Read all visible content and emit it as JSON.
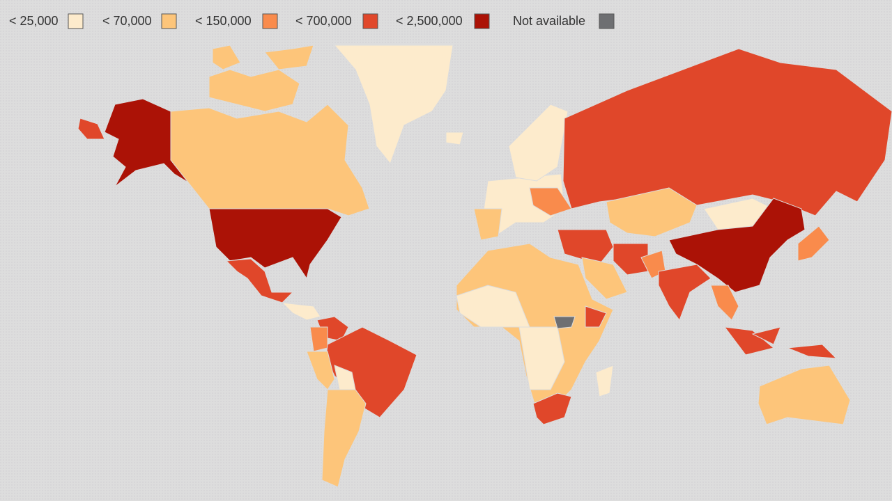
{
  "legend": {
    "items": [
      {
        "label": "< 25,000",
        "color": "#fdebcc"
      },
      {
        "label": "< 70,000",
        "color": "#fdc57a"
      },
      {
        "label": "< 150,000",
        "color": "#f98b4c"
      },
      {
        "label": "< 700,000",
        "color": "#e0472a"
      },
      {
        "label": "< 2,500,000",
        "color": "#ab1206"
      },
      {
        "label": "Not available",
        "color": "#6e6f72"
      }
    ]
  }
}
